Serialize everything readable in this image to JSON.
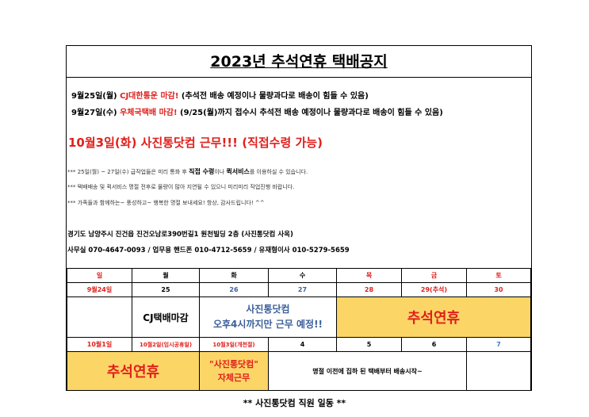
{
  "title": "2023년 추석연휴 택배공지",
  "notice1": {
    "date": "9월25일(월)",
    "highlight": "CJ대한통운 마감!",
    "rest": "(추석전 배송 예정이나 물량과다로 배송이 힘들 수 있음)"
  },
  "notice2": {
    "date": "9월27일(수)",
    "highlight": "우체국택배 마감!",
    "rest": "(9/25(월)까지 접수시 추석전 배송 예정이나 물량과다로 배송이 힘들 수 있음)"
  },
  "headline": "10월3일(화) 사진통닷컴 근무!!! (직접수령 가능)",
  "memo1": {
    "a": "*** 25일(월) ~ 27일(수) 급작업들은 미리 통화 후 ",
    "b": "직접 수령",
    "c": "이나 ",
    "d": "퀵서비스",
    "e": "를 이용하실 수 있습니다."
  },
  "memo2": "*** 택배배송 및 퀵서비스 명절 전후로 물량이 많아 지연될 수 있으니 미리미리 작업진행 바랍니다.",
  "memo3": "*** 가족들과 함께하는~ 풍성하고~ 행복한 명절 보내세요! 항상, 감사드립니다! ^^",
  "address": "경기도 남양주시 진건읍 진건오남로390번길1 원천빌딩 2층 (사진통닷컴 사옥)",
  "phones": "사무실 070-4647-0093 / 업무용 핸드폰 010-4712-5659 / 유재형이사 010-5279-5659",
  "calendar": {
    "weekdays": [
      "일",
      "월",
      "화",
      "수",
      "목",
      "금",
      "토"
    ],
    "week1": [
      "9월24일",
      "25",
      "26",
      "27",
      "28",
      "29(추석)",
      "30"
    ],
    "week1_notes": {
      "mon": "CJ택배마감",
      "tuewed_1": "사진통닷컴",
      "tuewed_2": "오후4시까지만 근무 예정!!",
      "holiday": "추석연휴"
    },
    "week2": [
      "10월1일",
      "10월2일(임시공휴일)",
      "10월3일(개천절)",
      "4",
      "5",
      "6",
      "7"
    ],
    "week2_notes": {
      "holiday": "추석연휴",
      "tue_1": "\"사진통닷컴\"",
      "tue_2": "자체근무",
      "wedfri": "명절 이전에 집하 된 택배부터 배송시작~"
    }
  },
  "footer": "** 사진통닷컴 직원 일동 **",
  "colors": {
    "red": "#e0201c",
    "blue": "#3b5f9a",
    "yellow": "#fcd567"
  }
}
